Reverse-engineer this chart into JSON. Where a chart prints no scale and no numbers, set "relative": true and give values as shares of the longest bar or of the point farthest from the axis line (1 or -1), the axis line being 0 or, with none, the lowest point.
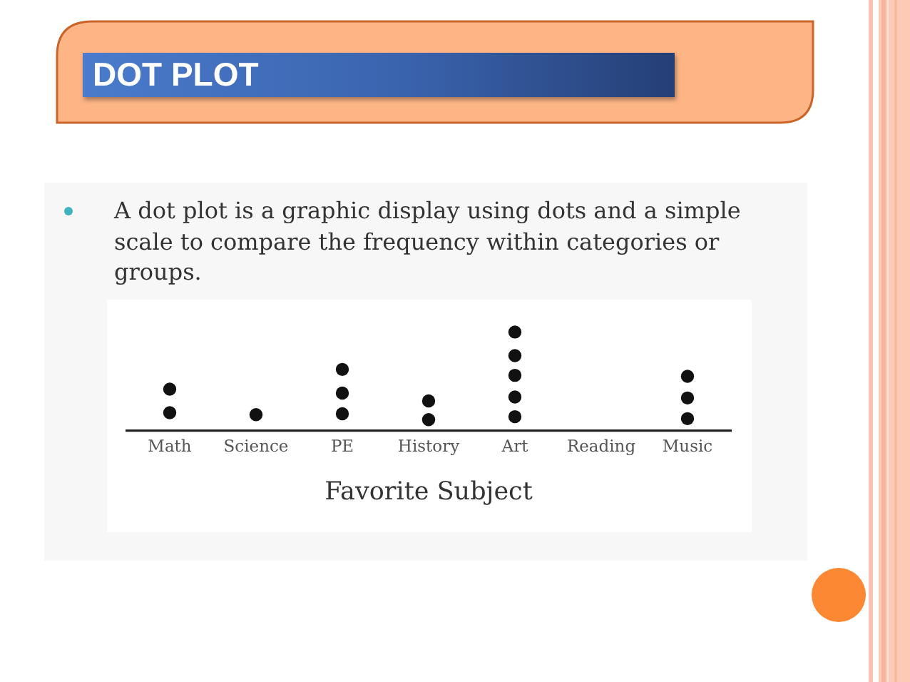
{
  "chart_data": {
    "type": "scatter",
    "title": "DOT PLOT",
    "subtitle": "A dot plot is a graphic display using dots and a simple scale to compare the frequency within categories or groups.",
    "xlabel": "Favorite Subject",
    "categories": [
      "Math",
      "Science",
      "PE",
      "History",
      "Art",
      "Reading",
      "Music"
    ],
    "relative": true,
    "marker": "circle",
    "series": [
      {
        "color": "#111111",
        "x": [
          "Math",
          "Math",
          "Science",
          "PE",
          "PE",
          "PE",
          "History",
          "History",
          "Art",
          "Art",
          "Art",
          "Art",
          "Art",
          "Music",
          "Music",
          "Music"
        ],
        "values": [
          0.18,
          0.42,
          0.16,
          0.17,
          0.38,
          0.62,
          0.11,
          0.3,
          0.14,
          0.34,
          0.56,
          0.76,
          1,
          0.12,
          0.33,
          0.55
        ]
      }
    ]
  }
}
